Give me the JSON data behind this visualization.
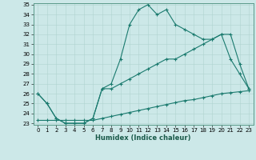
{
  "xlabel": "Humidex (Indice chaleur)",
  "bg_color": "#cce8e8",
  "grid_color": "#b0d4d0",
  "line_color": "#1a7a6e",
  "ylim": [
    23,
    35
  ],
  "xlim": [
    -0.5,
    23.5
  ],
  "yticks": [
    23,
    24,
    25,
    26,
    27,
    28,
    29,
    30,
    31,
    32,
    33,
    34,
    35
  ],
  "xticks": [
    0,
    1,
    2,
    3,
    4,
    5,
    6,
    7,
    8,
    9,
    10,
    11,
    12,
    13,
    14,
    15,
    16,
    17,
    18,
    19,
    20,
    21,
    22,
    23
  ],
  "line1_x": [
    0,
    1,
    2,
    3,
    4,
    5,
    6,
    7,
    8,
    9,
    10,
    11,
    12,
    13,
    14,
    15,
    16,
    17,
    18,
    19,
    20,
    21,
    22,
    23
  ],
  "line1_y": [
    26.0,
    25.0,
    23.5,
    23.0,
    23.0,
    23.0,
    23.5,
    26.5,
    27.0,
    29.5,
    33.0,
    34.5,
    35.0,
    34.0,
    34.5,
    33.0,
    32.5,
    32.0,
    31.5,
    31.5,
    32.0,
    29.5,
    28.0,
    26.5
  ],
  "line2_x": [
    0,
    1,
    2,
    3,
    4,
    5,
    6,
    7,
    8,
    9,
    10,
    11,
    12,
    13,
    14,
    15,
    16,
    17,
    18,
    19,
    20,
    21,
    22,
    23
  ],
  "line2_y": [
    26.0,
    25.0,
    23.5,
    23.0,
    23.0,
    23.0,
    23.5,
    26.5,
    26.5,
    27.0,
    27.5,
    28.0,
    28.5,
    29.0,
    29.5,
    29.5,
    30.0,
    30.5,
    31.0,
    31.5,
    32.0,
    32.0,
    29.0,
    26.5
  ],
  "line3_x": [
    0,
    1,
    2,
    3,
    4,
    5,
    6,
    7,
    8,
    9,
    10,
    11,
    12,
    13,
    14,
    15,
    16,
    17,
    18,
    19,
    20,
    21,
    22,
    23
  ],
  "line3_y": [
    23.3,
    23.3,
    23.3,
    23.3,
    23.3,
    23.3,
    23.3,
    23.5,
    23.7,
    23.9,
    24.1,
    24.3,
    24.5,
    24.7,
    24.9,
    25.1,
    25.3,
    25.4,
    25.6,
    25.8,
    26.0,
    26.1,
    26.2,
    26.3
  ],
  "tick_fontsize": 5,
  "xlabel_fontsize": 6,
  "xlabel_color": "#1a5a4a",
  "spine_color": "#5a9a8a"
}
